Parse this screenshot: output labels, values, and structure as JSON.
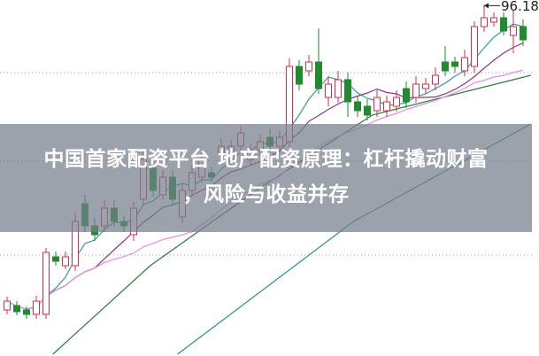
{
  "title": {
    "line1": "中国首家配资平台 地产配资原理：杠杆撬动财富",
    "line2": "，风险与收益并存"
  },
  "chart_data": {
    "type": "candlestick",
    "ylim": [
      76.5,
      96.6
    ],
    "grid": "horizontal-dotted",
    "grid_values": [
      92.5,
      87.5,
      82.2
    ],
    "high_label": "96.18",
    "colors": {
      "up": "#d0304a",
      "down": "#1f8a2e",
      "ma5": "#3a9a9a",
      "ma10": "#8a3a7a",
      "ma20": "#e090e0",
      "long1": "#2e7a3a",
      "long2": "#2e8a8a",
      "overlay": "#767e8a"
    },
    "candles_ohlc": [
      [
        79.1,
        79.6,
        79.85,
        78.85
      ],
      [
        79.35,
        79.0,
        79.6,
        78.8
      ],
      [
        79.1,
        78.85,
        79.3,
        78.6
      ],
      [
        78.85,
        79.6,
        79.9,
        78.6
      ],
      [
        78.85,
        82.35,
        82.6,
        78.6
      ],
      [
        82.1,
        81.85,
        82.4,
        81.6
      ],
      [
        81.6,
        82.1,
        82.4,
        81.4
      ],
      [
        81.6,
        84.1,
        84.6,
        81.3
      ],
      [
        85.1,
        83.85,
        85.6,
        83.5
      ],
      [
        83.85,
        83.35,
        84.3,
        83.0
      ],
      [
        83.85,
        84.85,
        85.3,
        83.5
      ],
      [
        84.85,
        84.1,
        85.3,
        83.8
      ],
      [
        84.1,
        83.85,
        84.4,
        83.5
      ],
      [
        83.35,
        84.85,
        85.2,
        83.0
      ],
      [
        85.35,
        87.6,
        88.1,
        85.0
      ],
      [
        87.1,
        85.85,
        87.6,
        85.5
      ],
      [
        85.6,
        86.6,
        87.0,
        85.3
      ],
      [
        86.6,
        85.35,
        87.0,
        85.0
      ],
      [
        84.35,
        85.85,
        86.2,
        84.0
      ],
      [
        85.85,
        86.85,
        87.3,
        85.5
      ],
      [
        86.6,
        87.6,
        88.0,
        86.3
      ],
      [
        86.85,
        86.6,
        87.2,
        86.3
      ],
      [
        87.85,
        88.35,
        88.8,
        87.5
      ],
      [
        87.6,
        88.35,
        88.7,
        87.3
      ],
      [
        88.35,
        89.1,
        89.5,
        88.0
      ],
      [
        87.6,
        88.1,
        88.5,
        87.3
      ],
      [
        88.1,
        88.6,
        89.0,
        87.8
      ],
      [
        88.85,
        88.35,
        89.3,
        88.0
      ],
      [
        88.35,
        88.85,
        89.2,
        88.0
      ],
      [
        88.6,
        92.85,
        93.3,
        88.3
      ],
      [
        92.85,
        91.85,
        93.2,
        91.5
      ],
      [
        92.6,
        93.1,
        93.5,
        92.3
      ],
      [
        93.1,
        91.6,
        95.0,
        91.3
      ],
      [
        91.1,
        91.85,
        92.3,
        90.6
      ],
      [
        91.1,
        92.1,
        92.6,
        90.8
      ],
      [
        92.1,
        90.85,
        92.5,
        90.0
      ],
      [
        90.85,
        90.35,
        91.2,
        90.0
      ],
      [
        90.6,
        90.1,
        91.0,
        89.8
      ],
      [
        90.35,
        91.1,
        91.5,
        90.0
      ],
      [
        90.35,
        90.85,
        91.2,
        90.0
      ],
      [
        90.6,
        91.1,
        91.5,
        90.3
      ],
      [
        91.6,
        90.85,
        92.0,
        90.5
      ],
      [
        91.1,
        91.85,
        92.3,
        90.8
      ],
      [
        91.6,
        91.85,
        92.2,
        91.3
      ],
      [
        91.85,
        92.35,
        92.8,
        91.5
      ],
      [
        93.1,
        92.6,
        94.0,
        92.3
      ],
      [
        93.1,
        92.85,
        93.4,
        92.5
      ],
      [
        92.6,
        93.35,
        93.8,
        92.3
      ],
      [
        92.85,
        95.1,
        95.4,
        92.5
      ],
      [
        95.1,
        95.6,
        96.18,
        94.8
      ],
      [
        95.35,
        95.6,
        95.9,
        95.1
      ],
      [
        95.6,
        94.85,
        95.9,
        94.6
      ],
      [
        94.6,
        95.1,
        96.0,
        93.6
      ],
      [
        95.1,
        94.35,
        95.5,
        94.0
      ]
    ],
    "moving_averages": [
      5,
      10,
      20
    ],
    "long_lines": [
      {
        "points": [
          [
            4.7,
            76.6
          ],
          [
            14.7,
            81.6
          ],
          [
            25.6,
            85.85
          ],
          [
            37.5,
            90.1
          ],
          [
            53.8,
            92.35
          ]
        ]
      },
      {
        "points": [
          [
            17.5,
            76.6
          ],
          [
            35.6,
            84.1
          ],
          [
            53.8,
            89.6
          ]
        ]
      }
    ]
  }
}
